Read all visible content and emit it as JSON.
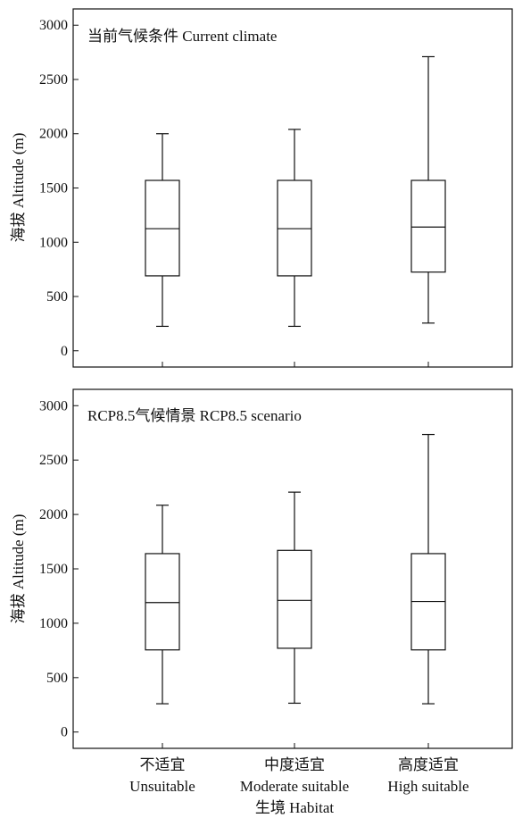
{
  "chart_data": [
    {
      "type": "box",
      "title": "当前气候条件 Current climate",
      "ylabel": "海拔 Altitude (m)",
      "ylim": [
        -150,
        3150
      ],
      "yticks": [
        0,
        500,
        1000,
        1500,
        2000,
        2500,
        3000
      ],
      "categories": [
        "不适宜 Unsuitable",
        "中度适宜 Moderate suitable",
        "高度适宜 High suitable"
      ],
      "boxes": [
        {
          "min": 225,
          "q1": 690,
          "median": 1125,
          "q3": 1570,
          "max": 2000
        },
        {
          "min": 225,
          "q1": 690,
          "median": 1125,
          "q3": 1570,
          "max": 2040
        },
        {
          "min": 255,
          "q1": 725,
          "median": 1140,
          "q3": 1570,
          "max": 2710
        }
      ]
    },
    {
      "type": "box",
      "title": "RCP8.5气候情景 RCP8.5 scenario",
      "ylabel": "海拔 Altitude (m)",
      "ylim": [
        -150,
        3150
      ],
      "yticks": [
        0,
        500,
        1000,
        1500,
        2000,
        2500,
        3000
      ],
      "categories": [
        "不适宜 Unsuitable",
        "中度适宜 Moderate suitable",
        "高度适宜 High suitable"
      ],
      "boxes": [
        {
          "min": 260,
          "q1": 755,
          "median": 1190,
          "q3": 1640,
          "max": 2085
        },
        {
          "min": 265,
          "q1": 770,
          "median": 1210,
          "q3": 1670,
          "max": 2205
        },
        {
          "min": 260,
          "q1": 755,
          "median": 1200,
          "q3": 1640,
          "max": 2735
        }
      ]
    }
  ],
  "xaxis": {
    "categories_cn": [
      "不适宜",
      "中度适宜",
      "高度适宜"
    ],
    "categories_en": [
      "Unsuitable",
      "Moderate suitable",
      "High suitable"
    ],
    "xlabel": "生境 Habitat"
  }
}
